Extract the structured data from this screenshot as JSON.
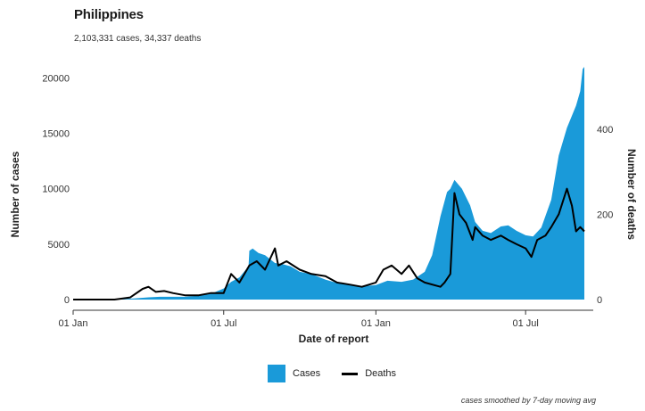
{
  "header": {
    "title": "Philippines",
    "subtitle": "2,103,331 cases, 34,337 deaths"
  },
  "legend": {
    "cases_label": "Cases",
    "deaths_label": "Deaths"
  },
  "footnote": "cases smoothed by 7-day moving avg",
  "colors": {
    "cases": "#1a9ad9",
    "deaths": "#000000"
  },
  "chart_data": {
    "type": "area",
    "title": "Philippines",
    "subtitle": "2,103,331 cases, 34,337 deaths",
    "xlabel": "Date of report",
    "ylabel": "Number of cases",
    "y2label": "Number of deaths",
    "xlim": [
      "2020-01-01",
      "2021-09-10"
    ],
    "ylim": [
      0,
      21000
    ],
    "y2lim": [
      0,
      546
    ],
    "x_ticks": [
      {
        "date": "2020-01-01",
        "label": "01 Jan"
      },
      {
        "date": "2020-07-01",
        "label": "01 Jul"
      },
      {
        "date": "2021-01-01",
        "label": "01 Jan"
      },
      {
        "date": "2021-07-01",
        "label": "01 Jul"
      }
    ],
    "y_ticks": [
      0,
      5000,
      10000,
      15000,
      20000
    ],
    "y2_ticks": [
      0,
      200,
      400
    ],
    "grid": false,
    "legend_position": "bottom",
    "series": [
      {
        "name": "Cases",
        "kind": "area",
        "axis": "left",
        "points": [
          [
            "2020-01-01",
            0
          ],
          [
            "2020-02-15",
            0
          ],
          [
            "2020-03-15",
            100
          ],
          [
            "2020-04-01",
            200
          ],
          [
            "2020-04-15",
            250
          ],
          [
            "2020-05-01",
            250
          ],
          [
            "2020-05-15",
            250
          ],
          [
            "2020-06-01",
            350
          ],
          [
            "2020-06-15",
            500
          ],
          [
            "2020-07-01",
            1000
          ],
          [
            "2020-07-10",
            1600
          ],
          [
            "2020-07-20",
            2000
          ],
          [
            "2020-07-31",
            3000
          ],
          [
            "2020-08-01",
            4400
          ],
          [
            "2020-08-05",
            4600
          ],
          [
            "2020-08-12",
            4200
          ],
          [
            "2020-08-20",
            4000
          ],
          [
            "2020-09-01",
            3300
          ],
          [
            "2020-09-10",
            3200
          ],
          [
            "2020-09-20",
            3000
          ],
          [
            "2020-10-01",
            2500
          ],
          [
            "2020-10-15",
            2300
          ],
          [
            "2020-11-01",
            1800
          ],
          [
            "2020-11-15",
            1500
          ],
          [
            "2020-12-01",
            1400
          ],
          [
            "2020-12-15",
            1200
          ],
          [
            "2021-01-01",
            1300
          ],
          [
            "2021-01-15",
            1700
          ],
          [
            "2021-02-01",
            1600
          ],
          [
            "2021-02-15",
            1800
          ],
          [
            "2021-03-01",
            2500
          ],
          [
            "2021-03-10",
            4000
          ],
          [
            "2021-03-20",
            7500
          ],
          [
            "2021-03-28",
            9700
          ],
          [
            "2021-04-01",
            10000
          ],
          [
            "2021-04-06",
            10800
          ],
          [
            "2021-04-15",
            10000
          ],
          [
            "2021-04-25",
            8500
          ],
          [
            "2021-05-01",
            7000
          ],
          [
            "2021-05-10",
            6200
          ],
          [
            "2021-05-20",
            6000
          ],
          [
            "2021-06-01",
            6600
          ],
          [
            "2021-06-10",
            6700
          ],
          [
            "2021-06-20",
            6200
          ],
          [
            "2021-07-01",
            5800
          ],
          [
            "2021-07-10",
            5700
          ],
          [
            "2021-07-20",
            6500
          ],
          [
            "2021-08-01",
            9000
          ],
          [
            "2021-08-10",
            13000
          ],
          [
            "2021-08-20",
            15500
          ],
          [
            "2021-08-31",
            17500
          ],
          [
            "2021-09-05",
            18800
          ],
          [
            "2021-09-08",
            20800
          ],
          [
            "2021-09-10",
            21000
          ]
        ]
      },
      {
        "name": "Deaths",
        "kind": "line",
        "axis": "right",
        "points": [
          [
            "2020-01-01",
            0
          ],
          [
            "2020-02-20",
            0
          ],
          [
            "2020-03-10",
            5
          ],
          [
            "2020-03-25",
            25
          ],
          [
            "2020-04-01",
            30
          ],
          [
            "2020-04-10",
            18
          ],
          [
            "2020-04-20",
            20
          ],
          [
            "2020-05-01",
            15
          ],
          [
            "2020-05-15",
            10
          ],
          [
            "2020-06-01",
            10
          ],
          [
            "2020-06-15",
            15
          ],
          [
            "2020-07-01",
            15
          ],
          [
            "2020-07-10",
            60
          ],
          [
            "2020-07-20",
            40
          ],
          [
            "2020-08-01",
            80
          ],
          [
            "2020-08-10",
            90
          ],
          [
            "2020-08-20",
            70
          ],
          [
            "2020-09-01",
            120
          ],
          [
            "2020-09-05",
            80
          ],
          [
            "2020-09-15",
            90
          ],
          [
            "2020-10-01",
            70
          ],
          [
            "2020-10-15",
            60
          ],
          [
            "2020-11-01",
            55
          ],
          [
            "2020-11-15",
            40
          ],
          [
            "2020-12-01",
            35
          ],
          [
            "2020-12-15",
            30
          ],
          [
            "2021-01-01",
            40
          ],
          [
            "2021-01-10",
            70
          ],
          [
            "2021-01-20",
            80
          ],
          [
            "2021-02-01",
            60
          ],
          [
            "2021-02-10",
            80
          ],
          [
            "2021-02-20",
            50
          ],
          [
            "2021-03-01",
            40
          ],
          [
            "2021-03-20",
            30
          ],
          [
            "2021-03-25",
            40
          ],
          [
            "2021-04-01",
            60
          ],
          [
            "2021-04-06",
            250
          ],
          [
            "2021-04-12",
            200
          ],
          [
            "2021-04-20",
            180
          ],
          [
            "2021-04-28",
            140
          ],
          [
            "2021-05-01",
            170
          ],
          [
            "2021-05-10",
            150
          ],
          [
            "2021-05-20",
            140
          ],
          [
            "2021-06-01",
            150
          ],
          [
            "2021-06-10",
            140
          ],
          [
            "2021-06-20",
            130
          ],
          [
            "2021-07-01",
            120
          ],
          [
            "2021-07-08",
            100
          ],
          [
            "2021-07-15",
            140
          ],
          [
            "2021-07-25",
            150
          ],
          [
            "2021-08-01",
            170
          ],
          [
            "2021-08-10",
            200
          ],
          [
            "2021-08-20",
            260
          ],
          [
            "2021-08-26",
            220
          ],
          [
            "2021-08-31",
            160
          ],
          [
            "2021-09-05",
            170
          ],
          [
            "2021-09-10",
            160
          ]
        ]
      }
    ]
  }
}
